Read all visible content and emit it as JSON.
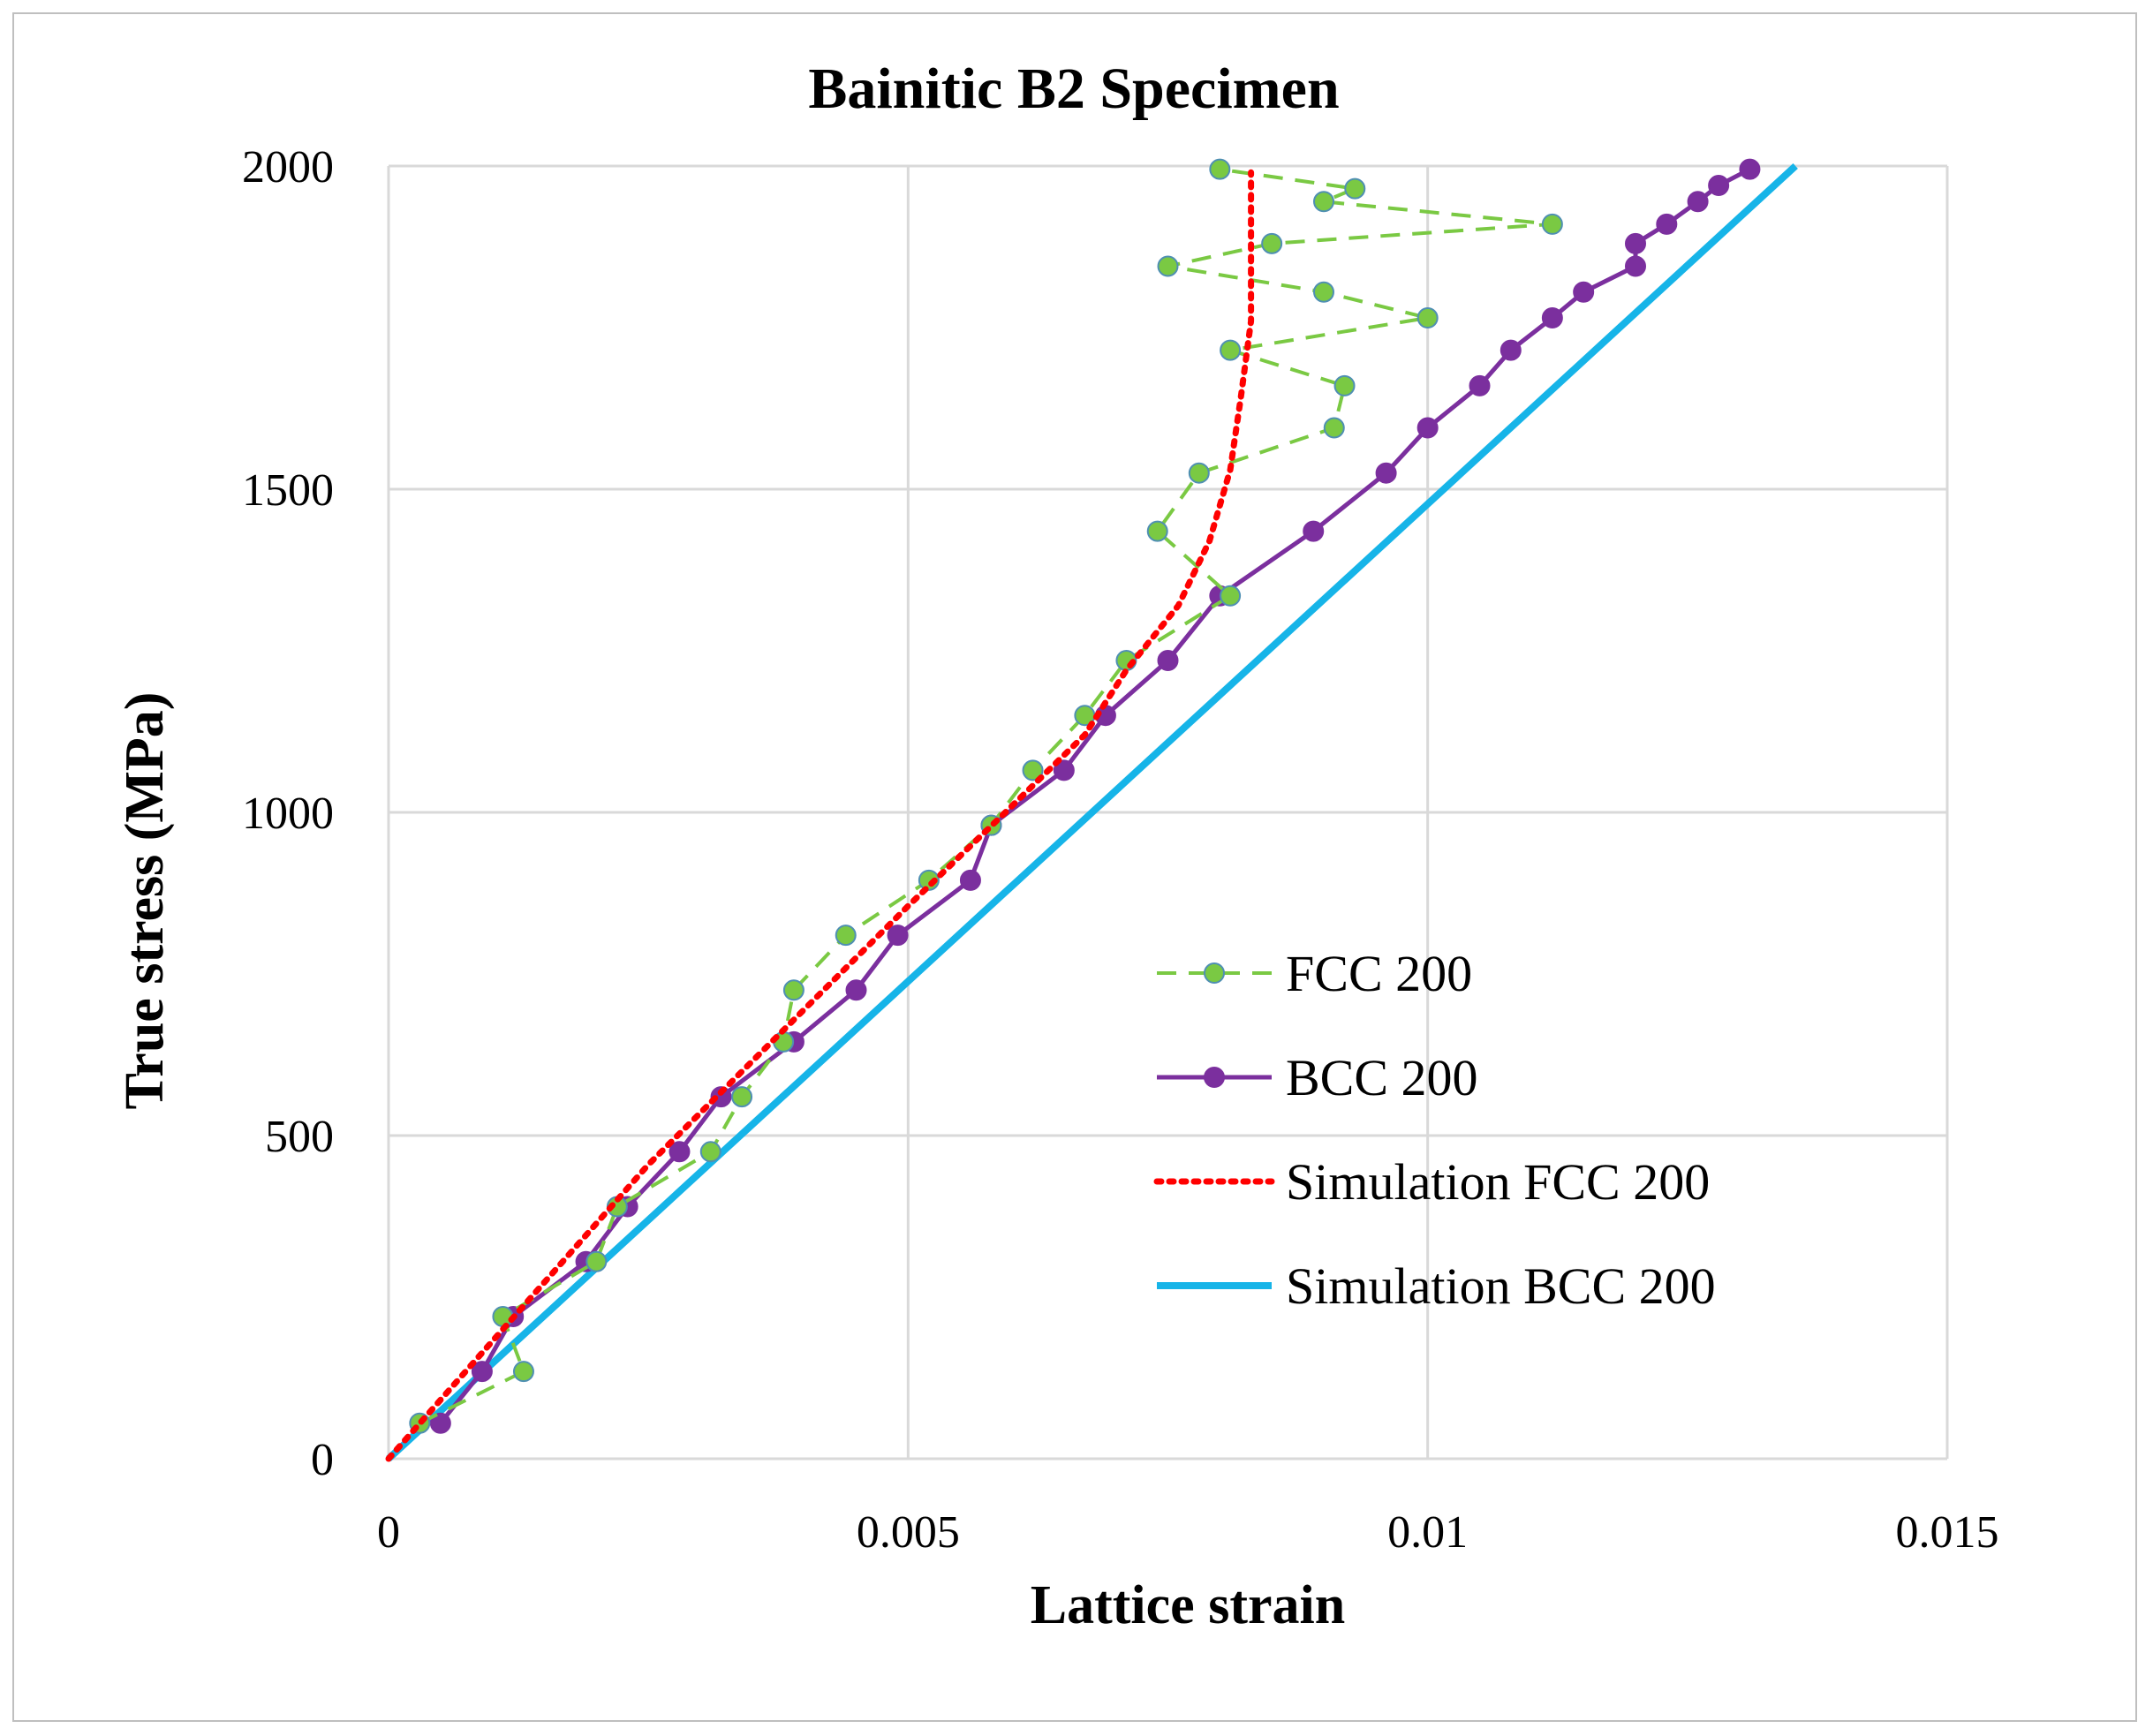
{
  "chart_data": {
    "type": "line",
    "title": "Bainitic B2 Specimen",
    "xlabel": "Lattice strain",
    "ylabel": "True stress (MPa)",
    "xlim": [
      0,
      0.015
    ],
    "ylim": [
      0,
      2000
    ],
    "xticks": [
      0,
      0.005,
      0.01,
      0.015
    ],
    "xtick_labels": [
      "0",
      "0.005",
      "0.01",
      "0.015"
    ],
    "yticks": [
      0,
      500,
      1000,
      1500,
      2000
    ],
    "ytick_labels": [
      "0",
      "500",
      "1000",
      "1500",
      "2000"
    ],
    "grid": true,
    "legend_position": "center-right",
    "colors": {
      "fcc": "#7ac943",
      "bcc": "#7b2f9e",
      "sim_fcc": "#ff0000",
      "sim_bcc": "#16b4e8",
      "grid": "#d9d9d9",
      "marker_edge": "#4f8fb3"
    },
    "series": [
      {
        "name": "FCC 200",
        "style": "dashed-markers",
        "points": [
          [
            0.0003,
            55
          ],
          [
            0.0013,
            135
          ],
          [
            0.0011,
            220
          ],
          [
            0.002,
            305
          ],
          [
            0.0022,
            390
          ],
          [
            0.0031,
            475
          ],
          [
            0.0034,
            560
          ],
          [
            0.0038,
            645
          ],
          [
            0.0039,
            725
          ],
          [
            0.0044,
            810
          ],
          [
            0.0052,
            895
          ],
          [
            0.0058,
            980
          ],
          [
            0.0062,
            1065
          ],
          [
            0.0067,
            1150
          ],
          [
            0.0071,
            1235
          ],
          [
            0.0081,
            1335
          ],
          [
            0.0074,
            1435
          ],
          [
            0.0078,
            1525
          ],
          [
            0.0091,
            1595
          ],
          [
            0.0092,
            1660
          ],
          [
            0.0081,
            1715
          ],
          [
            0.01,
            1765
          ],
          [
            0.009,
            1805
          ],
          [
            0.0075,
            1845
          ],
          [
            0.0085,
            1880
          ],
          [
            0.0112,
            1910
          ],
          [
            0.009,
            1945
          ],
          [
            0.0093,
            1965
          ],
          [
            0.008,
            1995
          ]
        ]
      },
      {
        "name": "BCC 200",
        "style": "solid-markers",
        "points": [
          [
            0.0005,
            55
          ],
          [
            0.0009,
            135
          ],
          [
            0.0012,
            220
          ],
          [
            0.0019,
            305
          ],
          [
            0.0023,
            390
          ],
          [
            0.0028,
            475
          ],
          [
            0.0032,
            560
          ],
          [
            0.0039,
            645
          ],
          [
            0.0045,
            725
          ],
          [
            0.0049,
            810
          ],
          [
            0.0056,
            895
          ],
          [
            0.0058,
            980
          ],
          [
            0.0065,
            1065
          ],
          [
            0.0069,
            1150
          ],
          [
            0.0075,
            1235
          ],
          [
            0.008,
            1335
          ],
          [
            0.0089,
            1435
          ],
          [
            0.0096,
            1525
          ],
          [
            0.01,
            1595
          ],
          [
            0.0105,
            1660
          ],
          [
            0.0108,
            1715
          ],
          [
            0.0112,
            1765
          ],
          [
            0.0115,
            1805
          ],
          [
            0.012,
            1845
          ],
          [
            0.012,
            1880
          ],
          [
            0.0123,
            1910
          ],
          [
            0.0126,
            1945
          ],
          [
            0.0128,
            1970
          ],
          [
            0.0131,
            1995
          ]
        ]
      },
      {
        "name": "Simulation FCC 200",
        "style": "dotted",
        "points": [
          [
            0,
            0
          ],
          [
            0.0025,
            455
          ],
          [
            0.005,
            855
          ],
          [
            0.006,
            1010
          ],
          [
            0.0067,
            1120
          ],
          [
            0.0071,
            1220
          ],
          [
            0.0076,
            1320
          ],
          [
            0.0079,
            1420
          ],
          [
            0.0081,
            1530
          ],
          [
            0.0082,
            1640
          ],
          [
            0.0083,
            1760
          ],
          [
            0.0083,
            1880
          ],
          [
            0.0083,
            1990
          ]
        ]
      },
      {
        "name": "Simulation BCC 200",
        "style": "solid-thick",
        "points": [
          [
            0,
            0
          ],
          [
            0.01354,
            2000
          ]
        ]
      }
    ]
  }
}
